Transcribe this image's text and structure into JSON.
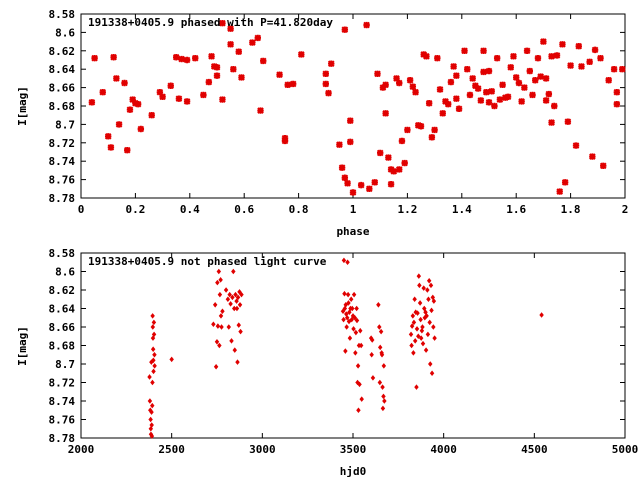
{
  "chart_data": [
    {
      "type": "scatter",
      "title": "191338+0405.9 phased with P=41.820day",
      "xlabel": "phase",
      "ylabel": "I[mag]",
      "xlim": [
        0,
        2
      ],
      "ylim": [
        8.58,
        8.78
      ],
      "y_inverted": true,
      "x_ticks": [
        "0",
        "0.2",
        "0.4",
        "0.6",
        "0.8",
        "1",
        "1.2",
        "1.4",
        "1.6",
        "1.8",
        "2"
      ],
      "y_ticks": [
        "8.58",
        "8.6",
        "8.62",
        "8.64",
        "8.66",
        "8.68",
        "8.7",
        "8.72",
        "8.74",
        "8.76",
        "8.78"
      ],
      "marker": "star",
      "color": "#e00000",
      "points": [
        [
          0.05,
          8.628
        ],
        [
          0.04,
          8.676
        ],
        [
          0.08,
          8.665
        ],
        [
          0.1,
          8.713
        ],
        [
          0.11,
          8.725
        ],
        [
          0.12,
          8.627
        ],
        [
          0.13,
          8.65
        ],
        [
          0.14,
          8.7
        ],
        [
          0.16,
          8.655
        ],
        [
          0.17,
          8.728
        ],
        [
          0.18,
          8.684
        ],
        [
          0.19,
          8.673
        ],
        [
          0.2,
          8.677
        ],
        [
          0.21,
          8.678
        ],
        [
          0.22,
          8.705
        ],
        [
          0.26,
          8.69
        ],
        [
          0.29,
          8.665
        ],
        [
          0.3,
          8.67
        ],
        [
          0.33,
          8.658
        ],
        [
          0.35,
          8.627
        ],
        [
          0.36,
          8.672
        ],
        [
          0.37,
          8.629
        ],
        [
          0.39,
          8.63
        ],
        [
          0.39,
          8.675
        ],
        [
          0.42,
          8.628
        ],
        [
          0.45,
          8.668
        ],
        [
          0.47,
          8.654
        ],
        [
          0.48,
          8.626
        ],
        [
          0.49,
          8.637
        ],
        [
          0.5,
          8.638
        ],
        [
          0.5,
          8.647
        ],
        [
          0.52,
          8.673
        ],
        [
          0.52,
          8.59
        ],
        [
          0.55,
          8.596
        ],
        [
          0.55,
          8.613
        ],
        [
          0.56,
          8.64
        ],
        [
          0.58,
          8.621
        ],
        [
          0.59,
          8.649
        ],
        [
          0.63,
          8.611
        ],
        [
          0.65,
          8.606
        ],
        [
          0.66,
          8.685
        ],
        [
          0.67,
          8.631
        ],
        [
          0.73,
          8.646
        ],
        [
          0.75,
          8.715
        ],
        [
          0.75,
          8.718
        ],
        [
          0.76,
          8.657
        ],
        [
          0.78,
          8.656
        ],
        [
          0.81,
          8.624
        ],
        [
          0.9,
          8.645
        ],
        [
          0.9,
          8.656
        ],
        [
          0.91,
          8.666
        ],
        [
          0.92,
          8.634
        ],
        [
          0.95,
          8.722
        ],
        [
          0.96,
          8.747
        ],
        [
          0.97,
          8.597
        ],
        [
          0.97,
          8.758
        ],
        [
          0.98,
          8.764
        ],
        [
          0.99,
          8.696
        ],
        [
          0.99,
          8.719
        ],
        [
          1.0,
          8.774
        ],
        [
          1.03,
          8.766
        ],
        [
          1.05,
          8.592
        ],
        [
          1.06,
          8.77
        ],
        [
          1.08,
          8.763
        ],
        [
          1.09,
          8.645
        ],
        [
          1.1,
          8.731
        ],
        [
          1.11,
          8.66
        ],
        [
          1.12,
          8.657
        ],
        [
          1.12,
          8.688
        ],
        [
          1.13,
          8.736
        ],
        [
          1.14,
          8.749
        ],
        [
          1.14,
          8.765
        ],
        [
          1.15,
          8.751
        ],
        [
          1.16,
          8.65
        ],
        [
          1.17,
          8.655
        ],
        [
          1.17,
          8.749
        ],
        [
          1.18,
          8.718
        ],
        [
          1.19,
          8.742
        ],
        [
          1.2,
          8.706
        ],
        [
          1.21,
          8.652
        ],
        [
          1.22,
          8.659
        ],
        [
          1.23,
          8.665
        ],
        [
          1.24,
          8.701
        ],
        [
          1.25,
          8.702
        ],
        [
          1.26,
          8.624
        ],
        [
          1.27,
          8.626
        ],
        [
          1.28,
          8.677
        ],
        [
          1.29,
          8.714
        ],
        [
          1.3,
          8.706
        ],
        [
          1.31,
          8.628
        ],
        [
          1.32,
          8.662
        ],
        [
          1.33,
          8.688
        ],
        [
          1.34,
          8.675
        ],
        [
          1.35,
          8.678
        ],
        [
          1.36,
          8.654
        ],
        [
          1.37,
          8.637
        ],
        [
          1.38,
          8.647
        ],
        [
          1.38,
          8.672
        ],
        [
          1.39,
          8.683
        ],
        [
          1.41,
          8.62
        ],
        [
          1.42,
          8.64
        ],
        [
          1.43,
          8.668
        ],
        [
          1.44,
          8.65
        ],
        [
          1.45,
          8.658
        ],
        [
          1.46,
          8.661
        ],
        [
          1.47,
          8.674
        ],
        [
          1.48,
          8.62
        ],
        [
          1.48,
          8.643
        ],
        [
          1.49,
          8.665
        ],
        [
          1.5,
          8.676
        ],
        [
          1.5,
          8.642
        ],
        [
          1.51,
          8.664
        ],
        [
          1.52,
          8.68
        ],
        [
          1.53,
          8.628
        ],
        [
          1.54,
          8.673
        ],
        [
          1.55,
          8.657
        ],
        [
          1.56,
          8.671
        ],
        [
          1.57,
          8.67
        ],
        [
          1.58,
          8.638
        ],
        [
          1.59,
          8.626
        ],
        [
          1.6,
          8.649
        ],
        [
          1.61,
          8.655
        ],
        [
          1.62,
          8.675
        ],
        [
          1.63,
          8.66
        ],
        [
          1.64,
          8.62
        ],
        [
          1.65,
          8.642
        ],
        [
          1.66,
          8.668
        ],
        [
          1.67,
          8.652
        ],
        [
          1.68,
          8.628
        ],
        [
          1.69,
          8.648
        ],
        [
          1.7,
          8.61
        ],
        [
          1.71,
          8.65
        ],
        [
          1.71,
          8.674
        ],
        [
          1.72,
          8.667
        ],
        [
          1.73,
          8.626
        ],
        [
          1.73,
          8.698
        ],
        [
          1.74,
          8.68
        ],
        [
          1.75,
          8.625
        ],
        [
          1.76,
          8.773
        ],
        [
          1.77,
          8.613
        ],
        [
          1.78,
          8.763
        ],
        [
          1.79,
          8.697
        ],
        [
          1.8,
          8.636
        ],
        [
          1.82,
          8.723
        ],
        [
          1.83,
          8.615
        ],
        [
          1.84,
          8.637
        ],
        [
          1.87,
          8.632
        ],
        [
          1.88,
          8.735
        ],
        [
          1.89,
          8.619
        ],
        [
          1.91,
          8.628
        ],
        [
          1.92,
          8.745
        ],
        [
          1.94,
          8.652
        ],
        [
          1.96,
          8.64
        ],
        [
          1.97,
          8.665
        ],
        [
          1.97,
          8.678
        ],
        [
          1.99,
          8.64
        ]
      ]
    },
    {
      "type": "scatter",
      "title": "191338+0405.9 not phased light curve",
      "xlabel": "hjd0",
      "ylabel": "I[mag]",
      "xlim": [
        2000,
        5000
      ],
      "ylim": [
        8.58,
        8.78
      ],
      "y_inverted": true,
      "x_ticks": [
        "2000",
        "2500",
        "3000",
        "3500",
        "4000",
        "4500",
        "5000"
      ],
      "y_ticks": [
        "8.58",
        "8.6",
        "8.62",
        "8.64",
        "8.66",
        "8.68",
        "8.7",
        "8.72",
        "8.74",
        "8.76",
        "8.78"
      ],
      "marker": "diamond",
      "color": "#e00000",
      "points": [
        [
          2378,
          8.714
        ],
        [
          2380,
          8.74
        ],
        [
          2382,
          8.75
        ],
        [
          2384,
          8.76
        ],
        [
          2385,
          8.77
        ],
        [
          2386,
          8.776
        ],
        [
          2388,
          8.698
        ],
        [
          2389,
          8.752
        ],
        [
          2390,
          8.766
        ],
        [
          2391,
          8.778
        ],
        [
          2393,
          8.745
        ],
        [
          2394,
          8.72
        ],
        [
          2395,
          8.648
        ],
        [
          2396,
          8.66
        ],
        [
          2397,
          8.672
        ],
        [
          2398,
          8.684
        ],
        [
          2399,
          8.696
        ],
        [
          2400,
          8.708
        ],
        [
          2402,
          8.655
        ],
        [
          2403,
          8.668
        ],
        [
          2405,
          8.69
        ],
        [
          2406,
          8.702
        ],
        [
          2500,
          8.695
        ],
        [
          2730,
          8.657
        ],
        [
          2740,
          8.636
        ],
        [
          2745,
          8.703
        ],
        [
          2750,
          8.676
        ],
        [
          2752,
          8.612
        ],
        [
          2755,
          8.659
        ],
        [
          2760,
          8.6
        ],
        [
          2763,
          8.68
        ],
        [
          2766,
          8.625
        ],
        [
          2770,
          8.609
        ],
        [
          2772,
          8.648
        ],
        [
          2775,
          8.66
        ],
        [
          2780,
          8.643
        ],
        [
          2800,
          8.62
        ],
        [
          2810,
          8.63
        ],
        [
          2815,
          8.66
        ],
        [
          2820,
          8.625
        ],
        [
          2825,
          8.635
        ],
        [
          2830,
          8.675
        ],
        [
          2835,
          8.628
        ],
        [
          2840,
          8.6
        ],
        [
          2845,
          8.64
        ],
        [
          2848,
          8.685
        ],
        [
          2852,
          8.625
        ],
        [
          2858,
          8.632
        ],
        [
          2860,
          8.64
        ],
        [
          2863,
          8.698
        ],
        [
          2866,
          8.628
        ],
        [
          2870,
          8.658
        ],
        [
          2874,
          8.622
        ],
        [
          2877,
          8.636
        ],
        [
          2880,
          8.665
        ],
        [
          2885,
          8.625
        ],
        [
          3445,
          8.643
        ],
        [
          3448,
          8.652
        ],
        [
          3450,
          8.588
        ],
        [
          3453,
          8.624
        ],
        [
          3455,
          8.64
        ],
        [
          3458,
          8.686
        ],
        [
          3460,
          8.636
        ],
        [
          3463,
          8.646
        ],
        [
          3465,
          8.66
        ],
        [
          3468,
          8.65
        ],
        [
          3470,
          8.59
        ],
        [
          3473,
          8.625
        ],
        [
          3475,
          8.634
        ],
        [
          3478,
          8.654
        ],
        [
          3480,
          8.644
        ],
        [
          3483,
          8.672
        ],
        [
          3486,
          8.64
        ],
        [
          3490,
          8.63
        ],
        [
          3493,
          8.652
        ],
        [
          3496,
          8.64
        ],
        [
          3500,
          8.648
        ],
        [
          3503,
          8.662
        ],
        [
          3506,
          8.625
        ],
        [
          3510,
          8.65
        ],
        [
          3513,
          8.688
        ],
        [
          3516,
          8.666
        ],
        [
          3520,
          8.64
        ],
        [
          3522,
          8.653
        ],
        [
          3525,
          8.72
        ],
        [
          3528,
          8.702
        ],
        [
          3530,
          8.75
        ],
        [
          3533,
          8.68
        ],
        [
          3536,
          8.722
        ],
        [
          3540,
          8.664
        ],
        [
          3545,
          8.68
        ],
        [
          3548,
          8.738
        ],
        [
          3600,
          8.672
        ],
        [
          3603,
          8.69
        ],
        [
          3606,
          8.674
        ],
        [
          3610,
          8.715
        ],
        [
          3640,
          8.636
        ],
        [
          3645,
          8.66
        ],
        [
          3648,
          8.72
        ],
        [
          3650,
          8.682
        ],
        [
          3655,
          8.665
        ],
        [
          3658,
          8.688
        ],
        [
          3660,
          8.69
        ],
        [
          3663,
          8.725
        ],
        [
          3665,
          8.748
        ],
        [
          3668,
          8.735
        ],
        [
          3670,
          8.702
        ],
        [
          3673,
          8.74
        ],
        [
          3820,
          8.668
        ],
        [
          3823,
          8.68
        ],
        [
          3826,
          8.659
        ],
        [
          3830,
          8.648
        ],
        [
          3833,
          8.688
        ],
        [
          3836,
          8.655
        ],
        [
          3840,
          8.63
        ],
        [
          3843,
          8.675
        ],
        [
          3846,
          8.644
        ],
        [
          3850,
          8.725
        ],
        [
          3853,
          8.662
        ],
        [
          3856,
          8.645
        ],
        [
          3860,
          8.67
        ],
        [
          3863,
          8.605
        ],
        [
          3866,
          8.615
        ],
        [
          3870,
          8.634
        ],
        [
          3873,
          8.652
        ],
        [
          3876,
          8.672
        ],
        [
          3880,
          8.664
        ],
        [
          3883,
          8.66
        ],
        [
          3886,
          8.678
        ],
        [
          3890,
          8.618
        ],
        [
          3893,
          8.64
        ],
        [
          3896,
          8.65
        ],
        [
          3900,
          8.644
        ],
        [
          3903,
          8.685
        ],
        [
          3906,
          8.648
        ],
        [
          3910,
          8.62
        ],
        [
          3913,
          8.668
        ],
        [
          3916,
          8.63
        ],
        [
          3920,
          8.61
        ],
        [
          3923,
          8.655
        ],
        [
          3926,
          8.7
        ],
        [
          3930,
          8.615
        ],
        [
          3933,
          8.642
        ],
        [
          3936,
          8.71
        ],
        [
          3940,
          8.628
        ],
        [
          3943,
          8.66
        ],
        [
          3946,
          8.632
        ],
        [
          3950,
          8.672
        ],
        [
          4540,
          8.647
        ]
      ]
    }
  ]
}
